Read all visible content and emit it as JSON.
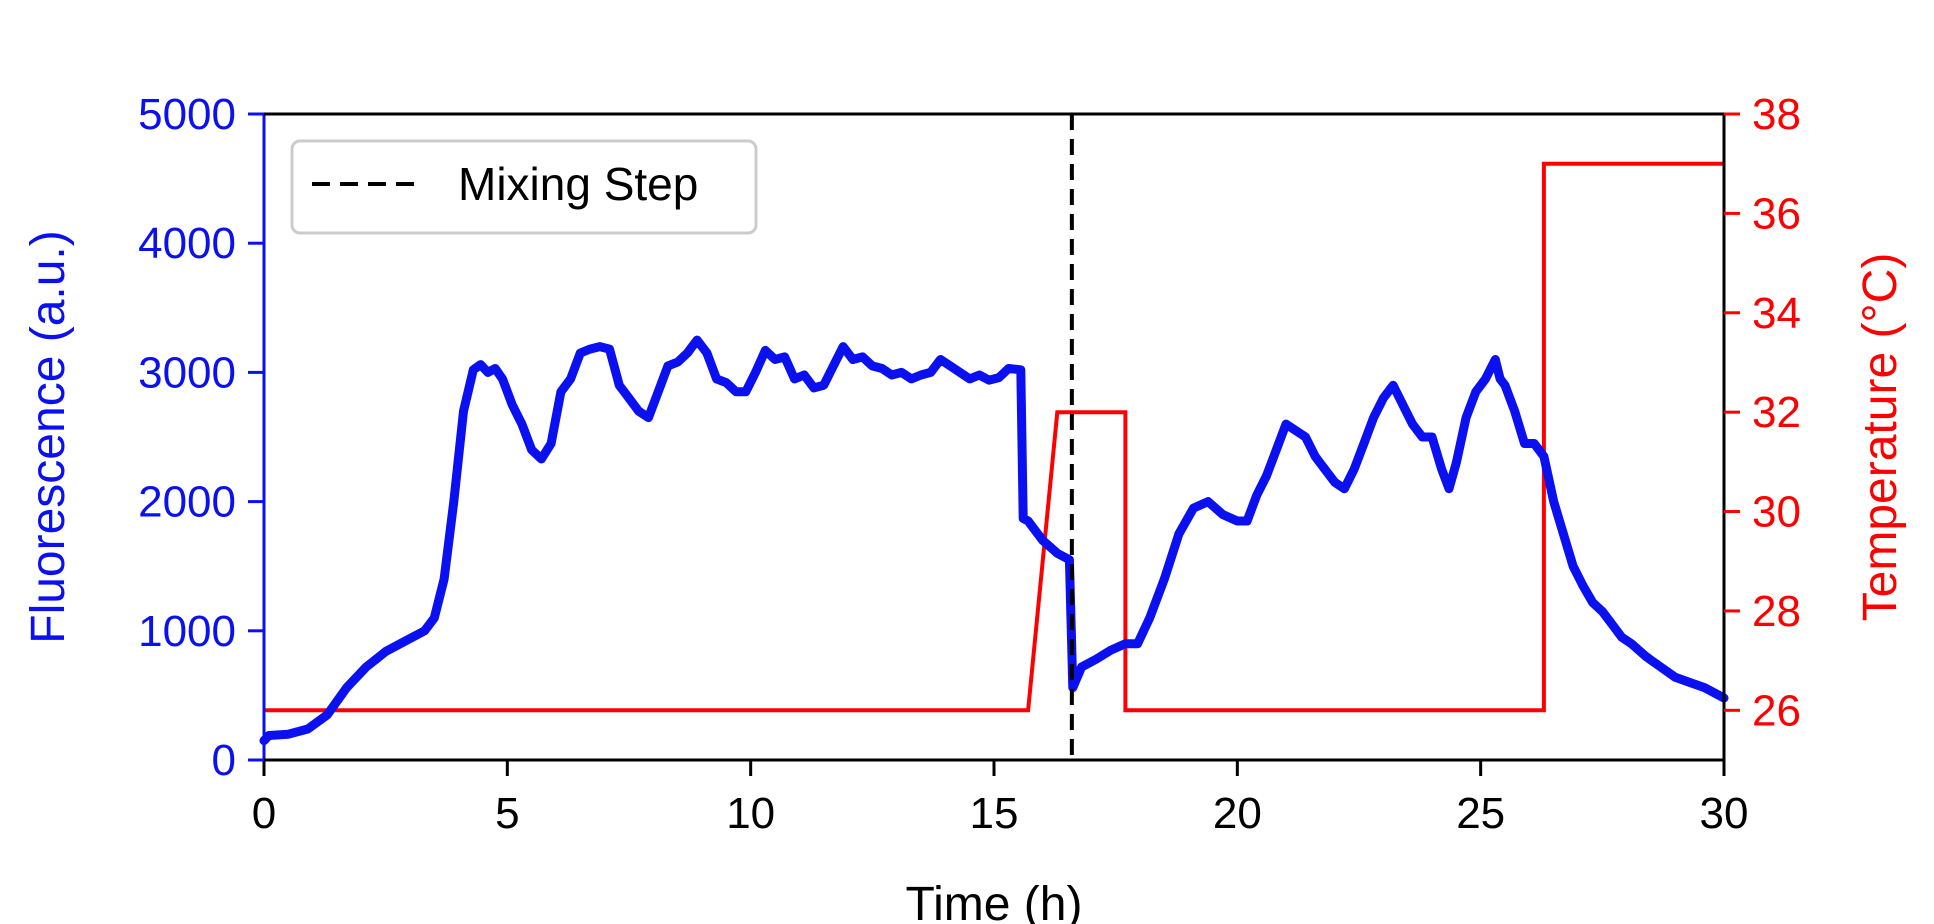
{
  "chart_data": {
    "type": "line",
    "title": "",
    "xlabel": "Time (h)",
    "ylabel_left": "Fluorescence (a.u.)",
    "ylabel_right": "Temperature (°C)",
    "xlim": [
      0,
      30
    ],
    "ylim_left": [
      0,
      5000
    ],
    "ylim_right": [
      25,
      38
    ],
    "x_ticks": [
      0,
      5,
      10,
      15,
      20,
      25,
      30
    ],
    "y_left_ticks": [
      0,
      1000,
      2000,
      3000,
      4000,
      5000
    ],
    "y_right_ticks": [
      26,
      28,
      30,
      32,
      34,
      36,
      38
    ],
    "grid": false,
    "legend": {
      "placement": "top-left",
      "entries": [
        "Mixing Step"
      ]
    },
    "mixing_step": {
      "label": "Mixing Step",
      "x": 16.6,
      "color": "#000000",
      "style": "dashed"
    },
    "series": [
      {
        "name": "Fluorescence",
        "axis": "left",
        "color": "#0a10f0",
        "x": [
          0,
          0.1,
          0.5,
          0.9,
          1.3,
          1.7,
          2.1,
          2.5,
          2.9,
          3.3,
          3.5,
          3.7,
          3.9,
          4.1,
          4.3,
          4.45,
          4.6,
          4.75,
          4.9,
          5.1,
          5.3,
          5.5,
          5.7,
          5.9,
          6.1,
          6.3,
          6.5,
          6.7,
          6.9,
          7.1,
          7.3,
          7.5,
          7.7,
          7.9,
          8.1,
          8.3,
          8.5,
          8.7,
          8.9,
          9.1,
          9.3,
          9.5,
          9.7,
          9.9,
          10.1,
          10.3,
          10.5,
          10.7,
          10.9,
          11.1,
          11.3,
          11.5,
          11.7,
          11.9,
          12.1,
          12.3,
          12.5,
          12.7,
          12.9,
          13.1,
          13.3,
          13.5,
          13.7,
          13.9,
          14.1,
          14.3,
          14.5,
          14.7,
          14.9,
          15.1,
          15.3,
          15.55,
          15.6,
          15.7,
          16.0,
          16.3,
          16.55,
          16.62,
          16.8,
          17.1,
          17.4,
          17.7,
          17.95,
          18.2,
          18.5,
          18.8,
          19.1,
          19.4,
          19.7,
          20.0,
          20.2,
          20.4,
          20.6,
          20.8,
          21.0,
          21.2,
          21.4,
          21.6,
          21.8,
          22.0,
          22.2,
          22.4,
          22.6,
          22.8,
          23.0,
          23.2,
          23.4,
          23.6,
          23.8,
          24.0,
          24.2,
          24.35,
          24.5,
          24.7,
          24.9,
          25.1,
          25.3,
          25.4,
          25.5,
          25.7,
          25.9,
          26.1,
          26.3,
          26.5,
          26.7,
          26.9,
          27.1,
          27.3,
          27.5,
          27.7,
          27.9,
          28.1,
          28.4,
          28.7,
          29.0,
          29.3,
          29.6,
          30.0
        ],
        "values": [
          150,
          190,
          200,
          240,
          350,
          560,
          720,
          840,
          920,
          1000,
          1100,
          1400,
          2000,
          2700,
          3020,
          3060,
          3000,
          3030,
          2950,
          2750,
          2600,
          2400,
          2330,
          2450,
          2850,
          2950,
          3150,
          3180,
          3200,
          3180,
          2900,
          2800,
          2700,
          2650,
          2850,
          3050,
          3080,
          3150,
          3250,
          3150,
          2950,
          2920,
          2850,
          2850,
          3000,
          3170,
          3100,
          3120,
          2950,
          2980,
          2880,
          2900,
          3050,
          3200,
          3100,
          3120,
          3050,
          3030,
          2980,
          3000,
          2950,
          2980,
          3000,
          3100,
          3050,
          3000,
          2950,
          2980,
          2940,
          2960,
          3030,
          3020,
          1870,
          1850,
          1700,
          1600,
          1550,
          560,
          720,
          780,
          850,
          900,
          900,
          1100,
          1400,
          1750,
          1950,
          2000,
          1900,
          1850,
          1850,
          2050,
          2200,
          2400,
          2600,
          2550,
          2500,
          2350,
          2250,
          2150,
          2100,
          2250,
          2450,
          2650,
          2800,
          2900,
          2750,
          2600,
          2500,
          2500,
          2250,
          2100,
          2300,
          2650,
          2850,
          2950,
          3100,
          2950,
          2900,
          2700,
          2450,
          2450,
          2350,
          2000,
          1750,
          1500,
          1350,
          1220,
          1150,
          1050,
          950,
          900,
          800,
          720,
          640,
          600,
          560,
          480
        ]
      },
      {
        "name": "Temperature",
        "axis": "right",
        "color": "#ff0000",
        "x": [
          0,
          15.7,
          16.3,
          17.7,
          17.7,
          26.3,
          26.3,
          30
        ],
        "values": [
          26,
          26,
          32,
          32,
          26,
          26,
          37,
          37
        ]
      }
    ]
  }
}
